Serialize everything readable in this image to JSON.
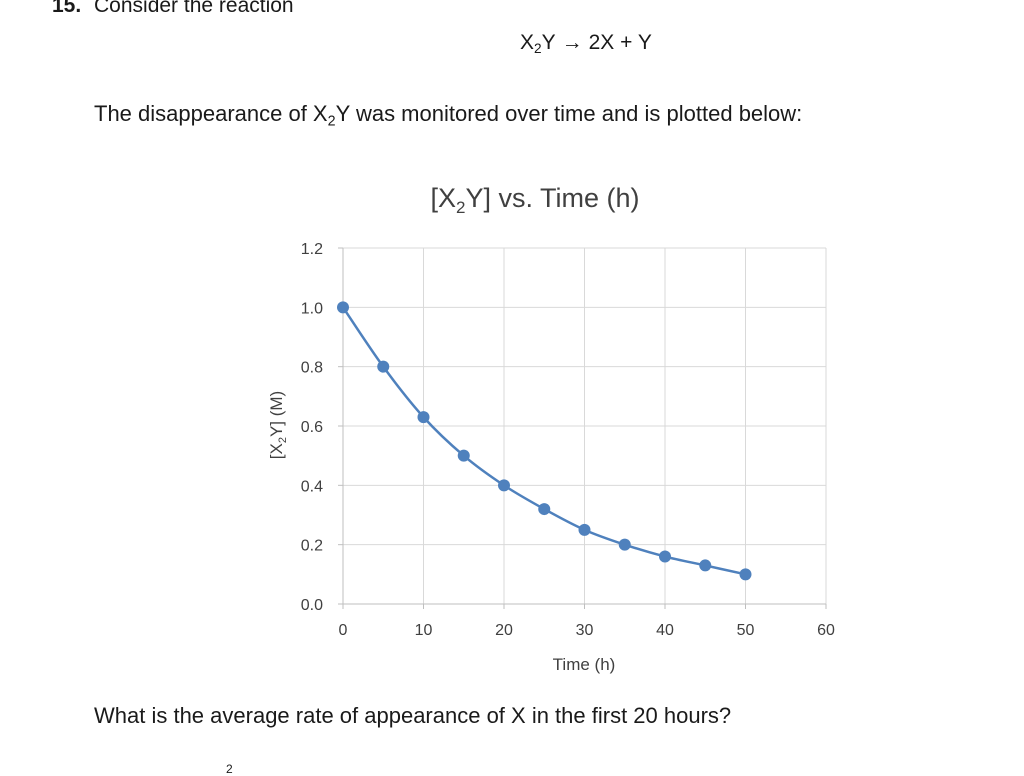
{
  "question": {
    "number": "15.",
    "prompt": "Consider the reaction",
    "reaction": {
      "reactant_base": "X",
      "reactant_sub": "2",
      "reactant_end": "Y",
      "arrow": "→",
      "products": "2X + Y"
    },
    "intro": {
      "before": "The disappearance of X",
      "sub": "2",
      "after": "Y was monitored over time and is plotted below:"
    },
    "ask": "What is the average rate of appearance of X in the first 20 hours?",
    "partial_bottom": "2"
  },
  "chart_data": {
    "type": "scatter",
    "title": {
      "before": "[X",
      "sub": "2",
      "after": "Y] vs. Time (h)"
    },
    "xlabel": "Time (h)",
    "ylabel": {
      "before": "[X",
      "sub": "2",
      "after": "Y] (M)"
    },
    "x_ticks": [
      "0",
      "10",
      "20",
      "30",
      "40",
      "50",
      "60"
    ],
    "y_ticks": [
      "0.0",
      "0.2",
      "0.4",
      "0.6",
      "0.8",
      "1.0",
      "1.2"
    ],
    "xlim": [
      0,
      60
    ],
    "ylim": [
      0,
      1.2
    ],
    "grid": true,
    "connected": true,
    "marker_color": "#4f81bd",
    "line_color": "#4f81bd",
    "series": [
      {
        "x": [
          0,
          5,
          10,
          15,
          20,
          25,
          30,
          35,
          40,
          45,
          50
        ],
        "y": [
          1.0,
          0.8,
          0.63,
          0.5,
          0.4,
          0.32,
          0.25,
          0.2,
          0.16,
          0.13,
          0.1
        ]
      }
    ]
  }
}
